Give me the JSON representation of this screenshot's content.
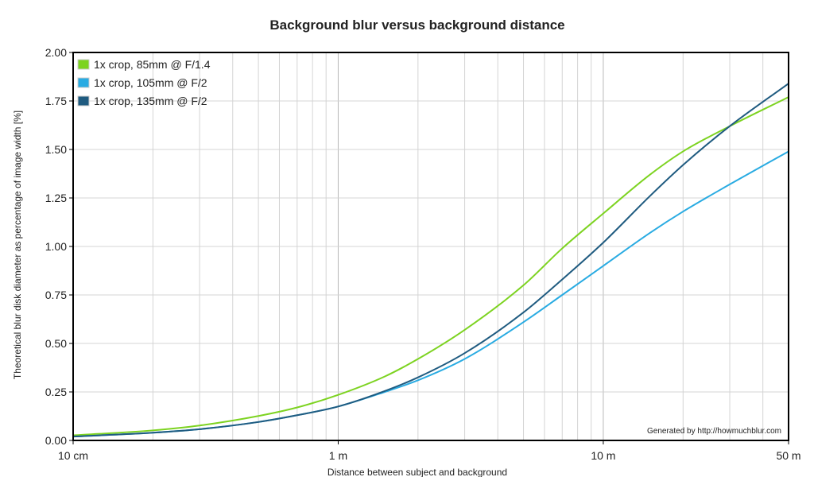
{
  "chart_data": {
    "type": "line",
    "title": "Background blur versus background distance",
    "xlabel": "Distance between subject and background",
    "ylabel": "Theoretical blur disk diameter as percentage of image width [%]",
    "x_scale": "log",
    "x_unit": "m",
    "xlim": [
      0.1,
      50
    ],
    "ylim": [
      0,
      2
    ],
    "grid": true,
    "legend_position": "top-left",
    "x_ticks": [
      {
        "value": 0.1,
        "label": "10 cm"
      },
      {
        "value": 1,
        "label": "1 m"
      },
      {
        "value": 10,
        "label": "10 m"
      },
      {
        "value": 50,
        "label": "50 m"
      }
    ],
    "y_ticks": [
      "0.00",
      "0.25",
      "0.50",
      "0.75",
      "1.00",
      "1.25",
      "1.50",
      "1.75",
      "2.00"
    ],
    "credit": "Generated by http://howmuchblur.com",
    "series": [
      {
        "name": "1x crop, 85mm @ F/1.4",
        "color": "#7dd321",
        "x": [
          0.1,
          0.2,
          0.3,
          0.5,
          0.7,
          1,
          1.5,
          2,
          3,
          5,
          7,
          10,
          15,
          20,
          30,
          50
        ],
        "y": [
          0.026,
          0.052,
          0.077,
          0.126,
          0.17,
          0.235,
          0.33,
          0.42,
          0.57,
          0.8,
          0.99,
          1.17,
          1.37,
          1.49,
          1.62,
          1.77
        ]
      },
      {
        "name": "1x crop, 105mm @ F/2",
        "color": "#29abe2",
        "x": [
          0.1,
          0.2,
          0.3,
          0.5,
          0.7,
          1,
          1.5,
          2,
          3,
          5,
          7,
          10,
          15,
          20,
          30,
          50
        ],
        "y": [
          0.02,
          0.04,
          0.058,
          0.095,
          0.13,
          0.175,
          0.25,
          0.31,
          0.42,
          0.61,
          0.75,
          0.9,
          1.07,
          1.18,
          1.32,
          1.49
        ]
      },
      {
        "name": "1x crop, 135mm @ F/2",
        "color": "#1f5b80",
        "x": [
          0.1,
          0.2,
          0.3,
          0.5,
          0.7,
          1,
          1.5,
          2,
          3,
          5,
          7,
          10,
          15,
          20,
          30,
          50
        ],
        "y": [
          0.02,
          0.04,
          0.058,
          0.095,
          0.13,
          0.175,
          0.255,
          0.325,
          0.45,
          0.66,
          0.83,
          1.02,
          1.26,
          1.42,
          1.62,
          1.84
        ]
      }
    ]
  }
}
